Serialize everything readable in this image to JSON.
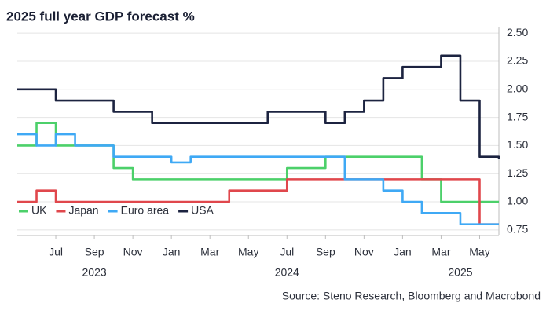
{
  "chart_data": {
    "type": "line",
    "title": "2025 full year GDP forecast %",
    "source": "Source: Steno Research, Bloomberg and Macrobond",
    "x": [
      "2023-05",
      "2023-06",
      "2023-07",
      "2023-08",
      "2023-09",
      "2023-10",
      "2023-11",
      "2023-12",
      "2024-01",
      "2024-02",
      "2024-03",
      "2024-04",
      "2024-05",
      "2024-06",
      "2024-07",
      "2024-08",
      "2024-09",
      "2024-10",
      "2024-11",
      "2024-12",
      "2025-01",
      "2025-02",
      "2025-03",
      "2025-04",
      "2025-05",
      "2025-06"
    ],
    "series": [
      {
        "name": "UK",
        "color": "#4cd06a",
        "values": [
          1.5,
          1.7,
          1.5,
          1.5,
          1.5,
          1.3,
          1.2,
          1.2,
          1.2,
          1.2,
          1.2,
          1.2,
          1.2,
          1.2,
          1.3,
          1.3,
          1.4,
          1.4,
          1.4,
          1.4,
          1.4,
          1.2,
          1.0,
          1.0,
          1.0,
          1.0
        ]
      },
      {
        "name": "Japan",
        "color": "#e0474c",
        "values": [
          1.0,
          1.1,
          1.0,
          1.0,
          1.0,
          1.0,
          1.0,
          1.0,
          1.0,
          1.0,
          1.0,
          1.1,
          1.1,
          1.1,
          1.2,
          1.2,
          1.2,
          1.2,
          1.2,
          1.2,
          1.2,
          1.2,
          1.2,
          1.2,
          0.8,
          0.8
        ]
      },
      {
        "name": "Euro area",
        "color": "#3fa9f5",
        "values": [
          1.6,
          1.5,
          1.6,
          1.5,
          1.5,
          1.4,
          1.4,
          1.4,
          1.35,
          1.4,
          1.4,
          1.4,
          1.4,
          1.4,
          1.4,
          1.4,
          1.4,
          1.2,
          1.2,
          1.1,
          1.0,
          0.9,
          0.9,
          0.8,
          0.8,
          0.8
        ]
      },
      {
        "name": "USA",
        "color": "#1c2340",
        "values": [
          2.0,
          2.0,
          1.9,
          1.9,
          1.9,
          1.8,
          1.8,
          1.7,
          1.7,
          1.7,
          1.7,
          1.7,
          1.7,
          1.8,
          1.8,
          1.8,
          1.7,
          1.8,
          1.9,
          2.1,
          2.2,
          2.2,
          2.3,
          1.9,
          1.4,
          1.38
        ]
      }
    ],
    "xlim": [
      "2023-05",
      "2025-06"
    ],
    "xticks": [
      {
        "value": "2023-07",
        "label": "Jul"
      },
      {
        "value": "2023-09",
        "label": "Sep"
      },
      {
        "value": "2023-11",
        "label": "Nov"
      },
      {
        "value": "2024-01",
        "label": "Jan"
      },
      {
        "value": "2024-03",
        "label": "Mar"
      },
      {
        "value": "2024-05",
        "label": "May"
      },
      {
        "value": "2024-07",
        "label": "Jul"
      },
      {
        "value": "2024-09",
        "label": "Sep"
      },
      {
        "value": "2024-11",
        "label": "Nov"
      },
      {
        "value": "2025-01",
        "label": "Jan"
      },
      {
        "value": "2025-03",
        "label": "Mar"
      },
      {
        "value": "2025-05",
        "label": "May"
      }
    ],
    "year_labels": [
      {
        "value": "2023-09",
        "label": "2023"
      },
      {
        "value": "2024-07",
        "label": "2024"
      },
      {
        "value": "2025-04",
        "label": "2025"
      }
    ],
    "ylim": [
      0.7,
      2.55
    ],
    "yticks": [
      {
        "value": 0.75,
        "label": "0.75"
      },
      {
        "value": 1,
        "label": "1.00"
      },
      {
        "value": 1.25,
        "label": "1.25"
      },
      {
        "value": 1.5,
        "label": "1.50"
      },
      {
        "value": 1.75,
        "label": "1.75"
      },
      {
        "value": 2,
        "label": "2.00"
      },
      {
        "value": 2.25,
        "label": "2.25"
      },
      {
        "value": 2.5,
        "label": "2.50"
      }
    ],
    "grid": true,
    "legend": "lower left"
  }
}
